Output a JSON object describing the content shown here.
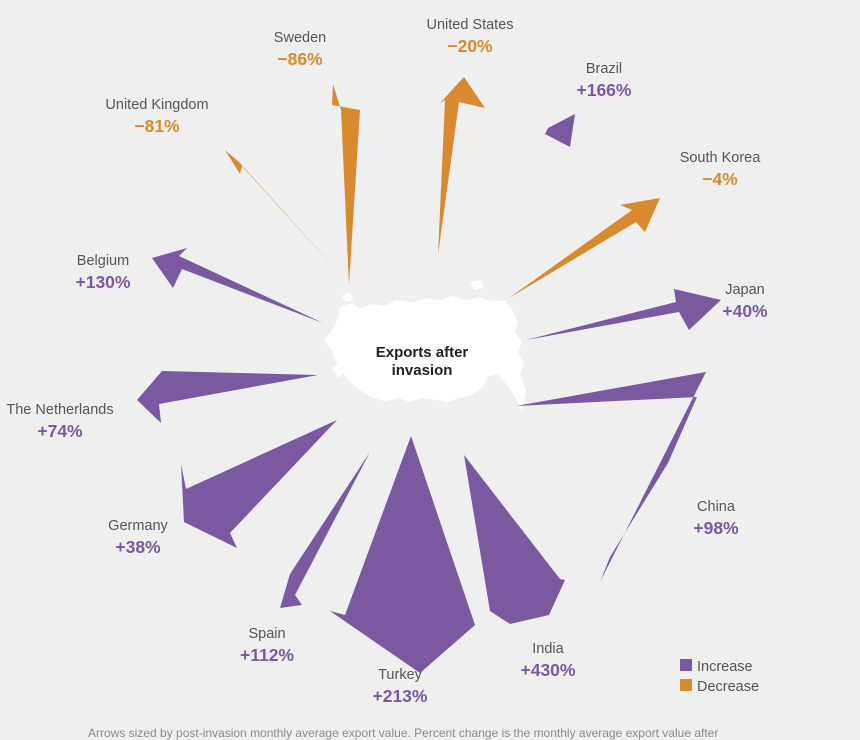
{
  "colors": {
    "increase": "#7b59a1",
    "decrease": "#d98a2e",
    "map": "#ffffff",
    "background": "#efefef"
  },
  "center": {
    "line1": "Exports after",
    "line2": "invasion"
  },
  "legend": {
    "increase": "Increase",
    "decrease": "Decrease"
  },
  "footnote": "Arrows sized by post-invasion monthly average export value. Percent change is the monthly average export value after",
  "chart_data": {
    "type": "radial-arrows",
    "items": [
      {
        "country": "Sweden",
        "change_pct": -86,
        "label": "−86%",
        "direction": "decrease"
      },
      {
        "country": "United States",
        "change_pct": -20,
        "label": "−20%",
        "direction": "decrease"
      },
      {
        "country": "Brazil",
        "change_pct": 166,
        "label": "+166%",
        "direction": "increase"
      },
      {
        "country": "South Korea",
        "change_pct": -4,
        "label": "−4%",
        "direction": "decrease"
      },
      {
        "country": "Japan",
        "change_pct": 40,
        "label": "+40%",
        "direction": "increase"
      },
      {
        "country": "China",
        "change_pct": 98,
        "label": "+98%",
        "direction": "increase"
      },
      {
        "country": "India",
        "change_pct": 430,
        "label": "+430%",
        "direction": "increase"
      },
      {
        "country": "Turkey",
        "change_pct": 213,
        "label": "+213%",
        "direction": "increase"
      },
      {
        "country": "Spain",
        "change_pct": 112,
        "label": "+112%",
        "direction": "increase"
      },
      {
        "country": "Germany",
        "change_pct": 38,
        "label": "+38%",
        "direction": "increase"
      },
      {
        "country": "The Netherlands",
        "change_pct": 74,
        "label": "+74%",
        "direction": "increase"
      },
      {
        "country": "Belgium",
        "change_pct": 130,
        "label": "+130%",
        "direction": "increase"
      },
      {
        "country": "United Kingdom",
        "change_pct": -81,
        "label": "−81%",
        "direction": "decrease"
      }
    ]
  }
}
